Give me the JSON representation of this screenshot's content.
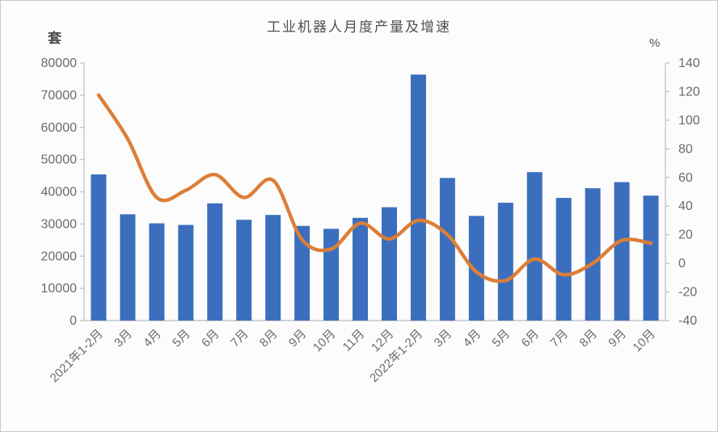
{
  "chart_data": {
    "type": "bar",
    "title": "工业机器人月度产量及增速",
    "subtitle": "",
    "categories": [
      "2021年1-2月",
      "3月",
      "4月",
      "5月",
      "6月",
      "7月",
      "8月",
      "9月",
      "10月",
      "11月",
      "12月",
      "2022年1-2月",
      "3月",
      "4月",
      "5月",
      "6月",
      "7月",
      "8月",
      "9月",
      "10月"
    ],
    "series": [
      {
        "name": "月度产量",
        "type": "bar",
        "axis": "left",
        "unit": "套",
        "values": [
          45400,
          33000,
          30200,
          29700,
          36400,
          31300,
          32800,
          29400,
          28500,
          31900,
          35200,
          76400,
          44300,
          32500,
          36600,
          46100,
          38100,
          41100,
          43000,
          38800
        ]
      },
      {
        "name": "增速",
        "type": "line",
        "axis": "right",
        "unit": "%",
        "values": [
          117.6,
          87,
          46,
          51,
          62,
          46,
          58,
          16.5,
          10,
          28,
          17,
          30,
          20,
          -6,
          -12,
          3,
          -8,
          0,
          16,
          14
        ]
      }
    ],
    "left_axis": {
      "unit": "套",
      "min": 0,
      "max": 80000,
      "step": 10000
    },
    "right_axis": {
      "unit": "%",
      "min": -40,
      "max": 140,
      "step": 20
    },
    "legend_position": "none",
    "grid": false,
    "x_label_rotation_deg": -45,
    "colors": {
      "bar": "#3b6fbd",
      "line": "#dd7e38",
      "axis": "#c5c5c5",
      "tick_text": "#6b6b6b",
      "title_text": "#4f4f4f"
    }
  }
}
